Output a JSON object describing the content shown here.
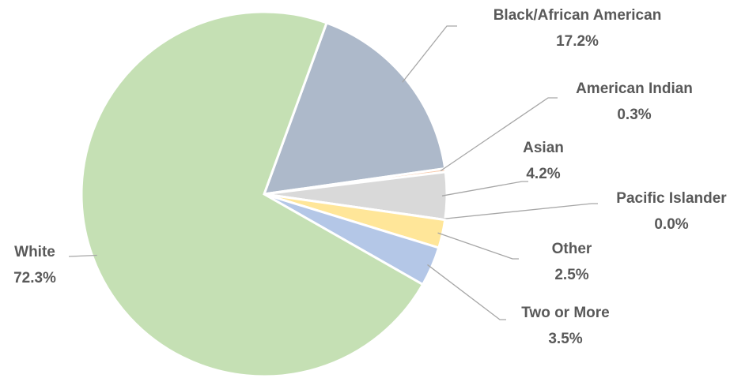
{
  "chart_data": {
    "type": "pie",
    "categories": [
      "Black/African American",
      "American Indian",
      "Asian",
      "Pacific Islander",
      "Other",
      "Two or More",
      "White"
    ],
    "values": [
      17.2,
      0.3,
      4.2,
      0.0,
      2.5,
      3.5,
      72.3
    ],
    "value_labels": [
      "17.2%",
      "0.3%",
      "4.2%",
      "0.0%",
      "2.5%",
      "3.5%",
      "72.3%"
    ],
    "colors": [
      "#adb9ca",
      "#f8cbad",
      "#d9d9d9",
      "#9dc3e6",
      "#ffe699",
      "#b4c7e7",
      "#c5e0b4"
    ]
  }
}
